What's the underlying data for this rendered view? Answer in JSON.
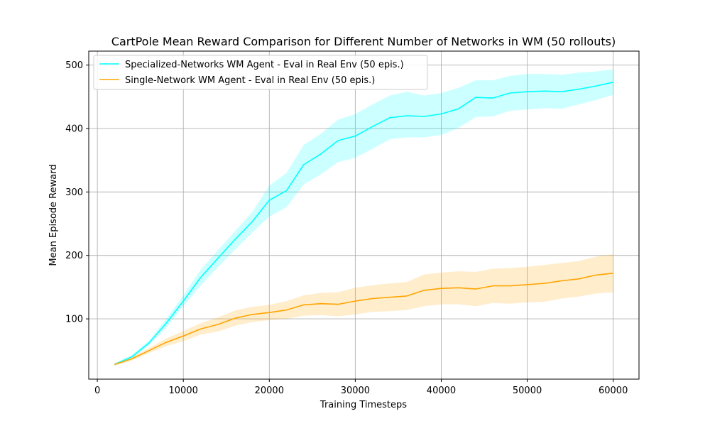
{
  "chart_data": {
    "type": "line",
    "title": "CartPole Mean Reward Comparison for Different Number of Networks in WM (50 rollouts)",
    "xlabel": "Training Timesteps",
    "ylabel": "Mean Episode Reward",
    "xlim": [
      -1000,
      63000
    ],
    "ylim": [
      5,
      522
    ],
    "xticks": [
      0,
      10000,
      20000,
      30000,
      40000,
      50000,
      60000
    ],
    "xtick_labels": [
      "0",
      "10000",
      "20000",
      "30000",
      "40000",
      "50000",
      "60000"
    ],
    "yticks": [
      100,
      200,
      300,
      400,
      500
    ],
    "ytick_labels": [
      "100",
      "200",
      "300",
      "400",
      "500"
    ],
    "grid": true,
    "legend_position": "top-left",
    "x": [
      2000,
      4000,
      6000,
      8000,
      10000,
      12000,
      14000,
      16000,
      18000,
      20000,
      22000,
      24000,
      26000,
      28000,
      30000,
      32000,
      34000,
      36000,
      38000,
      40000,
      42000,
      44000,
      46000,
      48000,
      50000,
      52000,
      54000,
      56000,
      58000,
      60000
    ],
    "series": [
      {
        "name": "Specialized-Networks WM Agent - Eval in Real Env (50 epis.)",
        "color": "#00ffff",
        "values": [
          28,
          40,
          62,
          93,
          128,
          165,
          195,
          225,
          253,
          287,
          302,
          343,
          360,
          381,
          388,
          403,
          417,
          420,
          419,
          423,
          431,
          449,
          448,
          456,
          458,
          459,
          458,
          462,
          467,
          473
        ],
        "upper": [
          30,
          43,
          66,
          100,
          137,
          177,
          208,
          238,
          268,
          310,
          330,
          374,
          392,
          414,
          423,
          438,
          452,
          458,
          452,
          456,
          464,
          476,
          476,
          483,
          486,
          486,
          485,
          488,
          490,
          493
        ],
        "lower": [
          26,
          37,
          58,
          86,
          120,
          152,
          181,
          209,
          236,
          261,
          276,
          312,
          328,
          347,
          354,
          368,
          383,
          386,
          386,
          390,
          401,
          418,
          419,
          428,
          430,
          432,
          431,
          438,
          445,
          453
        ]
      },
      {
        "name": "Single-Network WM Agent - Eval in Real Env (50 epis.)",
        "color": "#ffa500",
        "values": [
          28,
          37,
          50,
          63,
          73,
          84,
          91,
          101,
          107,
          110,
          114,
          122,
          124,
          123,
          128,
          132,
          134,
          136,
          145,
          148,
          149,
          147,
          152,
          152,
          154,
          156,
          160,
          163,
          169,
          172
        ],
        "upper": [
          30,
          40,
          54,
          69,
          81,
          93,
          102,
          113,
          119,
          122,
          128,
          137,
          141,
          142,
          149,
          153,
          156,
          158,
          170,
          173,
          175,
          174,
          179,
          180,
          182,
          185,
          188,
          191,
          198,
          202
        ],
        "lower": [
          26,
          34,
          46,
          57,
          65,
          75,
          80,
          89,
          95,
          98,
          100,
          105,
          106,
          104,
          107,
          111,
          112,
          114,
          120,
          123,
          123,
          120,
          125,
          124,
          126,
          127,
          132,
          135,
          140,
          142
        ]
      }
    ]
  }
}
